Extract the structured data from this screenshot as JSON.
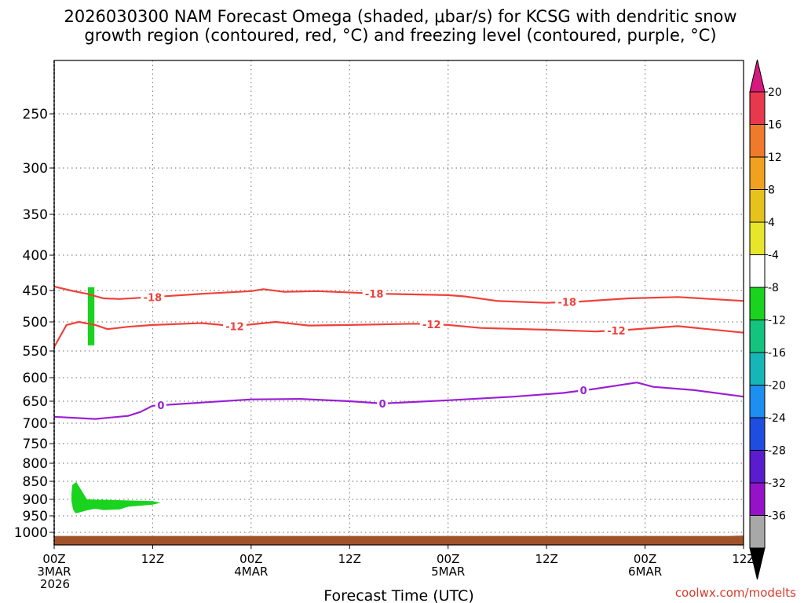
{
  "chart_data": {
    "type": "time-height",
    "title_line1": "2026030300 NAM Forecast Omega (shaded, μbar/s) for KCSG with dendritic snow",
    "title_line2": "growth region (contoured, red, °C) and freezing level (contoured, purple, °C)",
    "xlabel": "Forecast Time (UTC)",
    "credit": "coolwx.com/modelts",
    "x_unit": "forecast hour",
    "xlim": [
      0,
      84
    ],
    "ylim_hpa": [
      1050,
      200
    ],
    "y_ticks": [
      "250",
      "300",
      "350",
      "400",
      "450",
      "500",
      "550",
      "600",
      "650",
      "700",
      "750",
      "800",
      "850",
      "900",
      "950",
      "1000"
    ],
    "y_values": [
      250,
      300,
      350,
      400,
      450,
      500,
      550,
      600,
      650,
      700,
      750,
      800,
      850,
      900,
      950,
      1000
    ],
    "x_ticks": [
      {
        "h": 0,
        "l1": "00Z",
        "l2": "3MAR",
        "l3": "2026"
      },
      {
        "h": 12,
        "l1": "12Z",
        "l2": "",
        "l3": ""
      },
      {
        "h": 24,
        "l1": "00Z",
        "l2": "4MAR",
        "l3": ""
      },
      {
        "h": 36,
        "l1": "12Z",
        "l2": "",
        "l3": ""
      },
      {
        "h": 48,
        "l1": "00Z",
        "l2": "5MAR",
        "l3": ""
      },
      {
        "h": 60,
        "l1": "12Z",
        "l2": "",
        "l3": ""
      },
      {
        "h": 72,
        "l1": "00Z",
        "l2": "6MAR",
        "l3": ""
      },
      {
        "h": 84,
        "l1": "12Z",
        "l2": "",
        "l3": ""
      }
    ],
    "colorbar": {
      "labels": [
        "20",
        "16",
        "12",
        "8",
        "4",
        "-4",
        "-8",
        "-12",
        "-16",
        "-20",
        "-24",
        "-28",
        "-32",
        "-36"
      ],
      "colors": [
        "#e8384d",
        "#f07a2c",
        "#f0a11f",
        "#e6c21c",
        "#e8e62a",
        "#ffffff",
        "#19d31f",
        "#14c47e",
        "#17b6b6",
        "#1c8ff0",
        "#1f4de0",
        "#5a1ccc",
        "#9413c8",
        "#a8a8a8"
      ],
      "top_arrow": "#d8187f",
      "bottom_arrow": "#000000"
    },
    "series": [
      {
        "name": "-18 °C isotherm",
        "color": "#f0403a",
        "points": [
          [
            0,
            444
          ],
          [
            2,
            450
          ],
          [
            4,
            455
          ],
          [
            6,
            462
          ],
          [
            8,
            463
          ],
          [
            12,
            460
          ],
          [
            18,
            455
          ],
          [
            24,
            451
          ],
          [
            25.5,
            448
          ],
          [
            28,
            452
          ],
          [
            32,
            451
          ],
          [
            40,
            455
          ],
          [
            44,
            456
          ],
          [
            48,
            457
          ],
          [
            50,
            459
          ],
          [
            54,
            466
          ],
          [
            60,
            469
          ],
          [
            64,
            467
          ],
          [
            70,
            462
          ],
          [
            76,
            460
          ],
          [
            80,
            463
          ],
          [
            84,
            466
          ]
        ],
        "label": "-18",
        "label_positions": [
          12,
          39,
          62.5
        ]
      },
      {
        "name": "-12 °C isotherm",
        "color": "#f0403a",
        "points": [
          [
            0,
            543
          ],
          [
            0.5,
            530
          ],
          [
            1.5,
            505
          ],
          [
            3,
            500
          ],
          [
            5,
            505
          ],
          [
            6.5,
            512
          ],
          [
            9,
            508
          ],
          [
            12,
            505
          ],
          [
            18,
            502
          ],
          [
            22,
            507
          ],
          [
            27,
            500
          ],
          [
            31,
            506
          ],
          [
            36,
            505
          ],
          [
            44,
            503
          ],
          [
            48,
            505
          ],
          [
            52,
            510
          ],
          [
            60,
            513
          ],
          [
            66,
            516
          ],
          [
            70,
            513
          ],
          [
            76,
            507
          ],
          [
            84,
            518
          ]
        ],
        "label": "-12",
        "label_positions": [
          22,
          46,
          68.5
        ]
      },
      {
        "name": "0 °C freezing level",
        "color": "#9b1fd3",
        "points": [
          [
            0,
            685
          ],
          [
            5,
            690
          ],
          [
            9,
            683
          ],
          [
            10.5,
            674
          ],
          [
            12,
            660
          ],
          [
            18,
            653
          ],
          [
            24,
            646
          ],
          [
            30,
            645
          ],
          [
            36,
            650
          ],
          [
            40,
            655
          ],
          [
            48,
            648
          ],
          [
            56,
            640
          ],
          [
            62,
            632
          ],
          [
            66,
            623
          ],
          [
            71,
            610
          ],
          [
            73,
            619
          ],
          [
            78,
            626
          ],
          [
            84,
            640
          ]
        ],
        "label": "0",
        "label_positions": [
          13,
          40,
          64.5
        ]
      }
    ],
    "shaded_regions": [
      {
        "name": "omega -4 to -8 band",
        "color": "#19d31f",
        "range": "-4 to -8",
        "points": [
          [
            4.1,
            445
          ],
          [
            4.9,
            445
          ],
          [
            4.9,
            540
          ],
          [
            4.1,
            540
          ]
        ]
      },
      {
        "name": "omega -4 to -8 low-level",
        "color": "#19d31f",
        "range": "-4 to -8",
        "points": [
          [
            2.2,
            860
          ],
          [
            2.7,
            852
          ],
          [
            3.2,
            870
          ],
          [
            4,
            900
          ],
          [
            12,
            905
          ],
          [
            13,
            910
          ],
          [
            12,
            916
          ],
          [
            9,
            922
          ],
          [
            8,
            930
          ],
          [
            6,
            932
          ],
          [
            5,
            928
          ],
          [
            4,
            933
          ],
          [
            3,
            940
          ],
          [
            2.6,
            942
          ],
          [
            2.3,
            930
          ],
          [
            2.1,
            905
          ],
          [
            2.1,
            885
          ]
        ]
      }
    ],
    "ground": {
      "name": "terrain below surface",
      "color": "#a0532b",
      "top_hpa": 1010
    }
  }
}
